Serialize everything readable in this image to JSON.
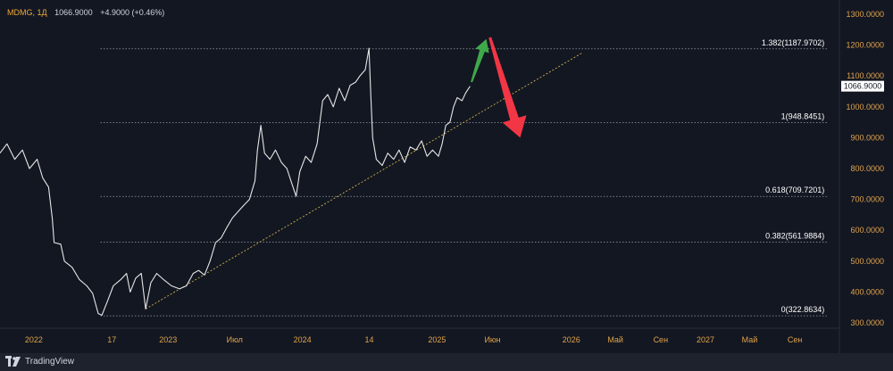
{
  "header": {
    "symbol": "MDMG, 1Д",
    "price": "1066.9000",
    "change": "+4.9000 (+0.46%)"
  },
  "footer": {
    "brand": "TradingView"
  },
  "colors": {
    "background": "#131722",
    "price_line": "#e6e6e6",
    "trend_line": "#c9b24a",
    "level_line": "#9aa0ab",
    "axis_text": "#e0a34a",
    "arrow_up": "#3fa94a",
    "arrow_down": "#f23645",
    "last_price_tag": "#ffffff"
  },
  "chart_data": {
    "type": "line",
    "title": "",
    "ylim": [
      300,
      1300
    ],
    "y_ticks": [
      "1300.0000",
      "1200.0000",
      "1100.0000",
      "1000.0000",
      "900.0000",
      "800.0000",
      "700.0000",
      "600.0000",
      "500.0000",
      "400.0000",
      "300.0000"
    ],
    "x_range": [
      "2021-10-01",
      "2027-12-31"
    ],
    "x_ticks": [
      {
        "date": "2022-01-01",
        "label": "2022"
      },
      {
        "date": "2022-08-01",
        "label": "17"
      },
      {
        "date": "2023-01-01",
        "label": "2023"
      },
      {
        "date": "2023-07-01",
        "label": "Июл"
      },
      {
        "date": "2024-01-01",
        "label": "2024"
      },
      {
        "date": "2024-07-01",
        "label": "14"
      },
      {
        "date": "2025-01-01",
        "label": "2025"
      },
      {
        "date": "2025-06-01",
        "label": "Июн"
      },
      {
        "date": "2026-01-01",
        "label": "2026"
      },
      {
        "date": "2026-05-01",
        "label": "Май"
      },
      {
        "date": "2026-09-01",
        "label": "Сен"
      },
      {
        "date": "2027-01-01",
        "label": "2027"
      },
      {
        "date": "2027-05-01",
        "label": "Май"
      },
      {
        "date": "2027-09-01",
        "label": "Сен"
      }
    ],
    "last_price": {
      "value": 1066.9,
      "label": "1066.9000"
    },
    "series": [
      {
        "points": [
          [
            "2021-10-01",
            850
          ],
          [
            "2021-10-20",
            880
          ],
          [
            "2021-11-10",
            830
          ],
          [
            "2021-12-01",
            860
          ],
          [
            "2021-12-20",
            800
          ],
          [
            "2022-01-10",
            830
          ],
          [
            "2022-01-25",
            770
          ],
          [
            "2022-02-10",
            740
          ],
          [
            "2022-02-20",
            640
          ],
          [
            "2022-02-25",
            560
          ],
          [
            "2022-03-15",
            555
          ],
          [
            "2022-03-25",
            500
          ],
          [
            "2022-04-15",
            480
          ],
          [
            "2022-05-05",
            440
          ],
          [
            "2022-05-25",
            420
          ],
          [
            "2022-06-10",
            395
          ],
          [
            "2022-06-25",
            330
          ],
          [
            "2022-07-05",
            325
          ],
          [
            "2022-07-20",
            370
          ],
          [
            "2022-08-05",
            420
          ],
          [
            "2022-08-25",
            440
          ],
          [
            "2022-09-10",
            460
          ],
          [
            "2022-09-20",
            400
          ],
          [
            "2022-10-05",
            445
          ],
          [
            "2022-10-20",
            460
          ],
          [
            "2022-11-01",
            345
          ],
          [
            "2022-11-15",
            430
          ],
          [
            "2022-12-01",
            460
          ],
          [
            "2022-12-20",
            440
          ],
          [
            "2023-01-10",
            420
          ],
          [
            "2023-02-01",
            410
          ],
          [
            "2023-02-20",
            420
          ],
          [
            "2023-03-10",
            460
          ],
          [
            "2023-03-25",
            470
          ],
          [
            "2023-04-10",
            455
          ],
          [
            "2023-04-25",
            500
          ],
          [
            "2023-05-10",
            560
          ],
          [
            "2023-05-25",
            575
          ],
          [
            "2023-06-10",
            610
          ],
          [
            "2023-06-25",
            640
          ],
          [
            "2023-07-10",
            660
          ],
          [
            "2023-07-25",
            680
          ],
          [
            "2023-08-10",
            700
          ],
          [
            "2023-08-25",
            760
          ],
          [
            "2023-09-01",
            860
          ],
          [
            "2023-09-10",
            940
          ],
          [
            "2023-09-20",
            850
          ],
          [
            "2023-10-05",
            830
          ],
          [
            "2023-10-20",
            860
          ],
          [
            "2023-11-05",
            820
          ],
          [
            "2023-11-20",
            800
          ],
          [
            "2023-12-01",
            760
          ],
          [
            "2023-12-15",
            710
          ],
          [
            "2023-12-25",
            790
          ],
          [
            "2024-01-10",
            840
          ],
          [
            "2024-01-25",
            820
          ],
          [
            "2024-02-10",
            880
          ],
          [
            "2024-02-25",
            1020
          ],
          [
            "2024-03-10",
            1040
          ],
          [
            "2024-03-25",
            1000
          ],
          [
            "2024-04-10",
            1060
          ],
          [
            "2024-04-25",
            1020
          ],
          [
            "2024-05-10",
            1070
          ],
          [
            "2024-05-25",
            1080
          ],
          [
            "2024-06-05",
            1100
          ],
          [
            "2024-06-20",
            1120
          ],
          [
            "2024-06-30",
            1190
          ],
          [
            "2024-07-05",
            1040
          ],
          [
            "2024-07-10",
            900
          ],
          [
            "2024-07-20",
            830
          ],
          [
            "2024-08-05",
            810
          ],
          [
            "2024-08-20",
            850
          ],
          [
            "2024-09-05",
            830
          ],
          [
            "2024-09-20",
            860
          ],
          [
            "2024-10-05",
            820
          ],
          [
            "2024-10-20",
            870
          ],
          [
            "2024-11-05",
            860
          ],
          [
            "2024-11-20",
            890
          ],
          [
            "2024-12-05",
            840
          ],
          [
            "2024-12-20",
            860
          ],
          [
            "2025-01-05",
            840
          ],
          [
            "2025-01-15",
            880
          ],
          [
            "2025-01-25",
            940
          ],
          [
            "2025-02-05",
            950
          ],
          [
            "2025-02-15",
            1000
          ],
          [
            "2025-02-25",
            1030
          ],
          [
            "2025-03-10",
            1020
          ],
          [
            "2025-03-20",
            1045
          ],
          [
            "2025-04-01",
            1066.9
          ]
        ]
      }
    ],
    "trend_line": {
      "from": [
        "2022-11-01",
        345
      ],
      "to": [
        "2026-01-31",
        1175
      ]
    },
    "fib_levels": [
      {
        "value": 1187.9702,
        "label": "1.382(1187.9702)"
      },
      {
        "value": 948.8451,
        "label": "1(948.8451)"
      },
      {
        "value": 709.7201,
        "label": "0.618(709.7201)"
      },
      {
        "value": 561.9884,
        "label": "0.382(561.9884)"
      },
      {
        "value": 322.8634,
        "label": "0(322.8634)"
      }
    ],
    "fib_span": [
      "2022-07-01",
      "2027-11-30"
    ],
    "arrows": [
      {
        "direction": "up",
        "from": [
          "2025-04-05",
          1080
        ],
        "to": [
          "2025-05-15",
          1220
        ]
      },
      {
        "direction": "down",
        "from": [
          "2025-05-25",
          1225
        ],
        "to": [
          "2025-08-15",
          900
        ]
      }
    ]
  }
}
